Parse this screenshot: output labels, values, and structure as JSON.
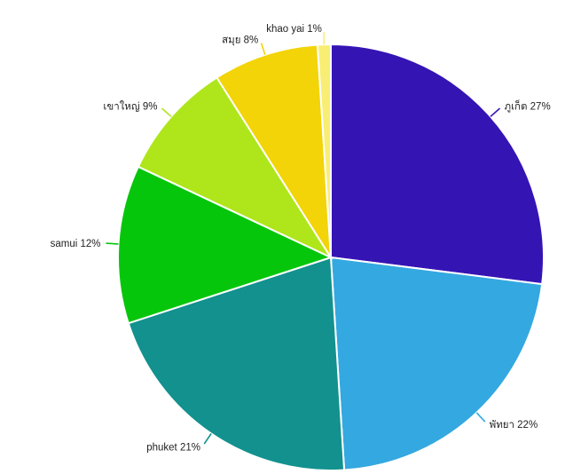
{
  "chart_data": {
    "type": "pie",
    "title": "",
    "slices": [
      {
        "label": "ภูเก็ต 27%",
        "value": 27,
        "color": "#3514b4"
      },
      {
        "label": "พัทยา 22%",
        "value": 22,
        "color": "#34a8e0"
      },
      {
        "label": "phuket 21%",
        "value": 21,
        "color": "#12918e"
      },
      {
        "label": "samui 12%",
        "value": 12,
        "color": "#06c60c"
      },
      {
        "label": "เขาใหญ่ 9%",
        "value": 9,
        "color": "#aee61b"
      },
      {
        "label": "สมุย 8%",
        "value": 8,
        "color": "#f2d408"
      },
      {
        "label": "khao yai 1%",
        "value": 1,
        "color": "#f8ee74"
      }
    ],
    "start_angle_deg": 0,
    "direction": "clockwise",
    "legend": "none",
    "labels": "outside-with-leader-lines"
  }
}
